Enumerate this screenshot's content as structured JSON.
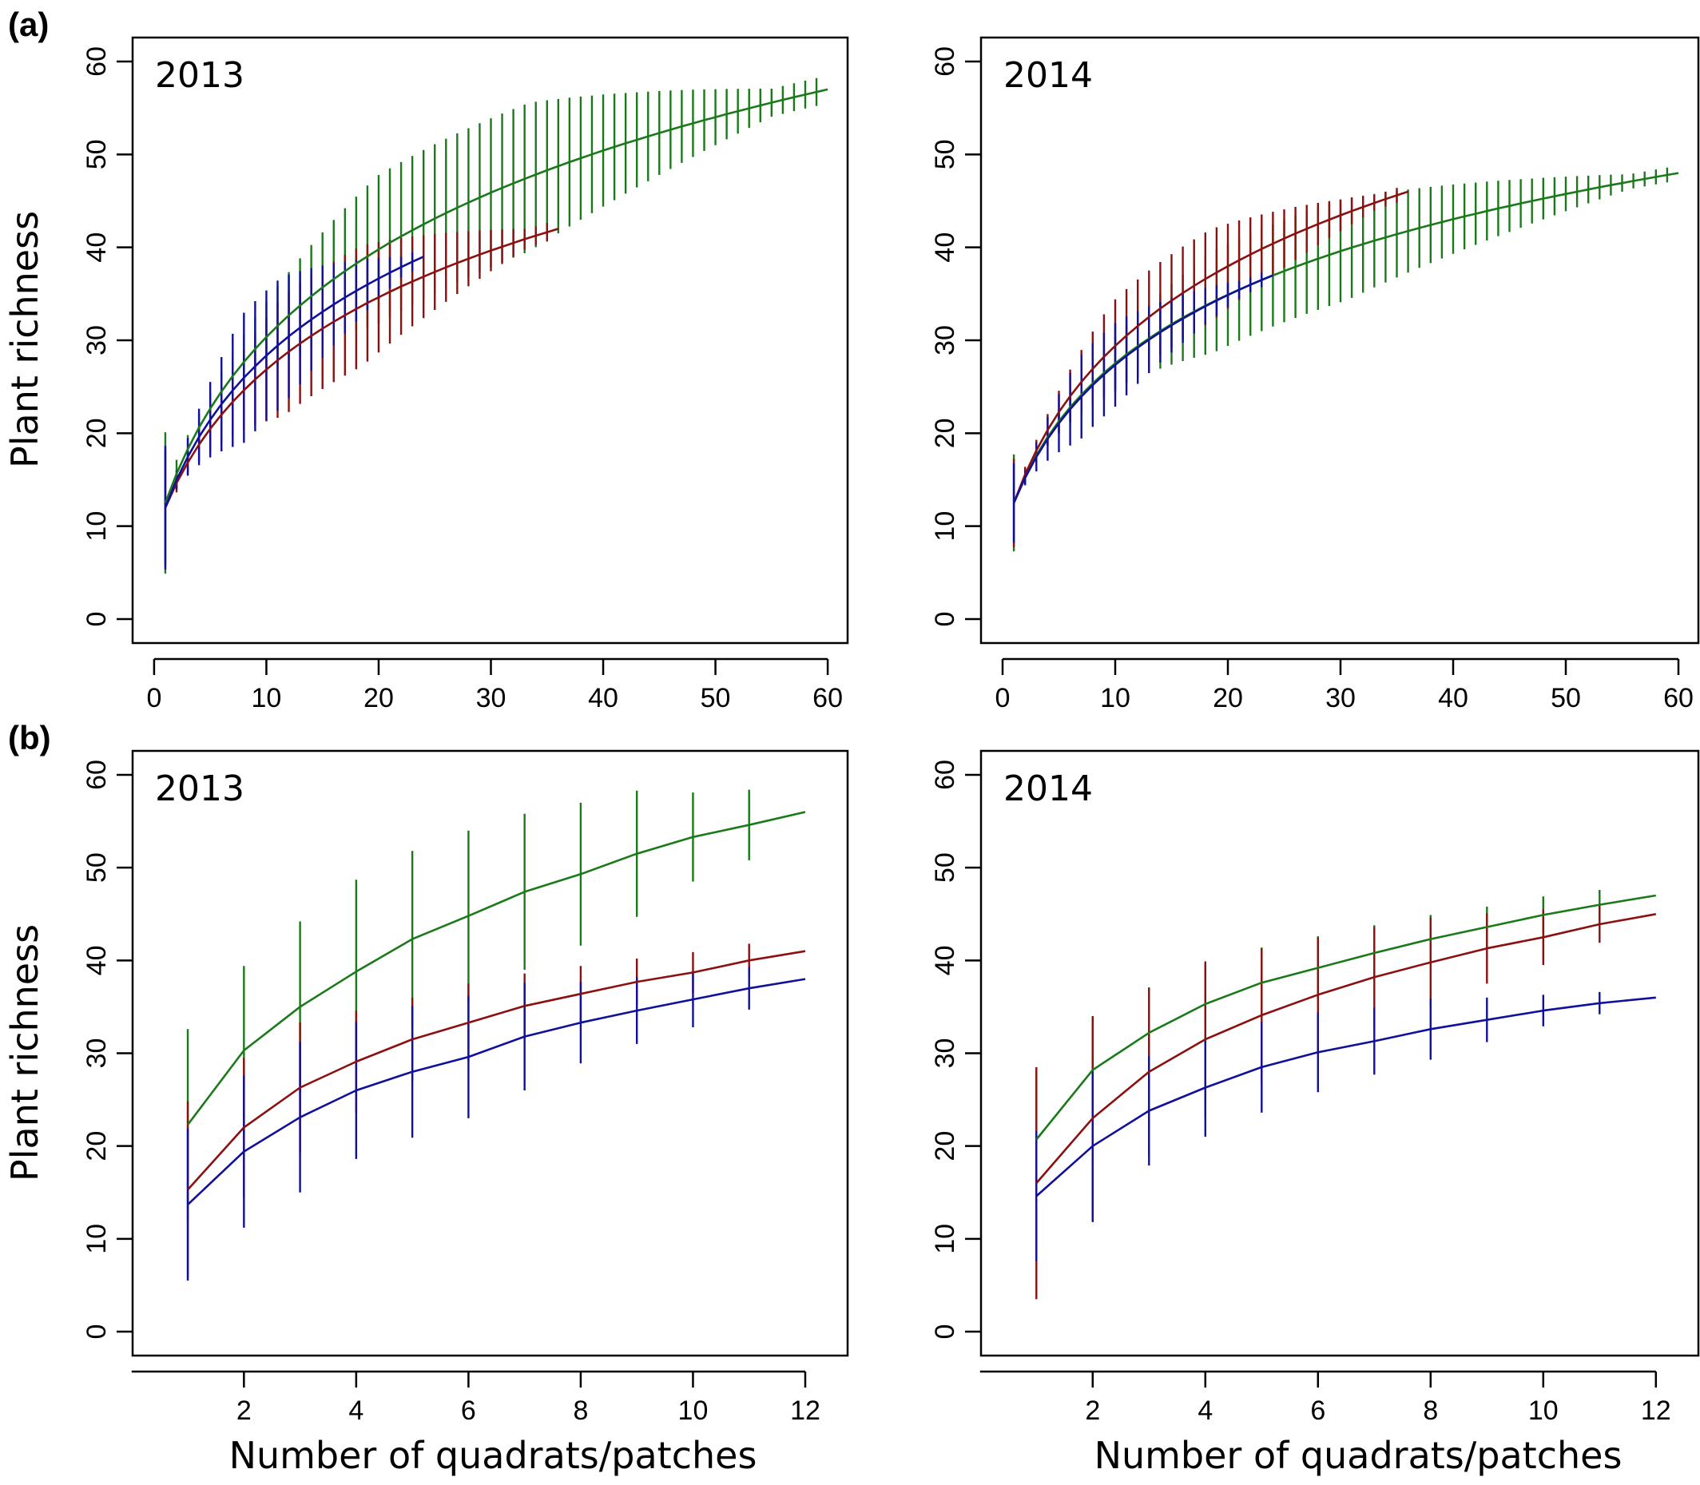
{
  "panel_labels": {
    "a": "(a)",
    "b": "(b)"
  },
  "ylabel": "Plant richness",
  "xlabel": "Number of quadrats/patches",
  "colors": {
    "green": "#1a7a1a",
    "red": "#8b1010",
    "blue": "#10109a"
  },
  "chart_data": [
    {
      "type": "line",
      "panel": "a",
      "year_label": "2013",
      "xlim": [
        0,
        60
      ],
      "ylim": [
        0,
        60
      ],
      "xticks": [
        0,
        10,
        20,
        30,
        40,
        50,
        60
      ],
      "yticks": [
        0,
        10,
        20,
        30,
        40,
        50,
        60
      ],
      "series": [
        {
          "color": "green",
          "n": 60,
          "final": 57,
          "a": 0.195,
          "x0": 0.2,
          "y0": 12.5,
          "err": {
            "max": 8,
            "ramp": 0.32,
            "peak": 0.55,
            "floor": 1.5
          }
        },
        {
          "color": "red",
          "n": 36,
          "final": 42,
          "a": 0.2,
          "x0": 0.25,
          "y0": 12.0,
          "err": {
            "max": 6.5,
            "ramp": 0.3,
            "peak": 0.5,
            "floor": 1.0
          }
        },
        {
          "color": "blue",
          "n": 24,
          "final": 39,
          "a": 0.22,
          "x0": 0.25,
          "y0": 12.0,
          "err": {
            "max": 7,
            "ramp": 0.3,
            "peak": 0.45,
            "floor": 1.0
          }
        }
      ]
    },
    {
      "type": "line",
      "panel": "a",
      "year_label": "2014",
      "xlim": [
        0,
        60
      ],
      "ylim": [
        0,
        60
      ],
      "xticks": [
        0,
        10,
        20,
        30,
        40,
        50,
        60
      ],
      "yticks": [
        0,
        10,
        20,
        30,
        40,
        50,
        60
      ],
      "series": [
        {
          "color": "green",
          "n": 60,
          "final": 48,
          "a": 0.24,
          "x0": 0.25,
          "y0": 12.5,
          "err": {
            "max": 5.5,
            "ramp": 0.3,
            "peak": 0.5,
            "floor": 0.8
          }
        },
        {
          "color": "red",
          "n": 36,
          "final": 46,
          "a": 0.22,
          "x0": 0.25,
          "y0": 12.5,
          "err": {
            "max": 5,
            "ramp": 0.25,
            "peak": 0.5,
            "floor": 0.8
          }
        },
        {
          "color": "blue",
          "n": 24,
          "final": 37,
          "a": 0.22,
          "x0": 0.25,
          "y0": 12.5,
          "err": {
            "max": 4.5,
            "ramp": 0.25,
            "peak": 0.4,
            "floor": 0.8
          }
        }
      ]
    },
    {
      "type": "line",
      "panel": "b",
      "year_label": "2013",
      "xlim": [
        0.4,
        12.4
      ],
      "ylim": [
        0,
        60
      ],
      "xticks": [
        2,
        4,
        6,
        8,
        10,
        12
      ],
      "yticks": [
        0,
        10,
        20,
        30,
        40,
        50,
        60
      ],
      "series": [
        {
          "color": "green",
          "x": [
            1,
            2,
            3,
            4,
            5,
            6,
            7,
            8,
            9,
            10,
            11,
            12
          ],
          "y": [
            22.3,
            30.3,
            35.0,
            38.8,
            42.3,
            44.8,
            47.4,
            49.3,
            51.5,
            53.3,
            54.6,
            56.0
          ],
          "err": [
            10.3,
            9.1,
            9.2,
            9.9,
            9.5,
            9.2,
            8.4,
            7.7,
            6.8,
            4.8,
            3.8,
            0
          ]
        },
        {
          "color": "red",
          "x": [
            1,
            2,
            3,
            4,
            5,
            6,
            7,
            8,
            9,
            10,
            11,
            12
          ],
          "y": [
            15.3,
            22.0,
            26.3,
            29.1,
            31.5,
            33.3,
            35.1,
            36.4,
            37.7,
            38.7,
            40.0,
            41.0
          ],
          "err": [
            9.5,
            7.5,
            7.0,
            5.5,
            4.5,
            4.2,
            3.5,
            3.0,
            2.5,
            2.2,
            1.8,
            0
          ]
        },
        {
          "color": "blue",
          "x": [
            1,
            2,
            3,
            4,
            5,
            6,
            7,
            8,
            9,
            10,
            11,
            12
          ],
          "y": [
            13.7,
            19.4,
            23.1,
            26.0,
            28.0,
            29.6,
            31.8,
            33.3,
            34.6,
            35.8,
            37.0,
            38.0
          ],
          "err": [
            8.2,
            8.2,
            8.1,
            7.4,
            7.1,
            6.6,
            5.8,
            4.4,
            3.6,
            3.0,
            2.3,
            0
          ]
        }
      ]
    },
    {
      "type": "line",
      "panel": "b",
      "year_label": "2014",
      "xlim": [
        0.4,
        12.4
      ],
      "ylim": [
        0,
        60
      ],
      "xticks": [
        2,
        4,
        6,
        8,
        10,
        12
      ],
      "yticks": [
        0,
        10,
        20,
        30,
        40,
        50,
        60
      ],
      "series": [
        {
          "color": "green",
          "x": [
            1,
            2,
            3,
            4,
            5,
            6,
            7,
            8,
            9,
            10,
            11,
            12
          ],
          "y": [
            20.7,
            28.2,
            32.2,
            35.3,
            37.6,
            39.2,
            40.8,
            42.3,
            43.6,
            44.9,
            46.0,
            47.0
          ],
          "err": [
            7.5,
            5.6,
            4.9,
            4.3,
            3.8,
            3.4,
            3.0,
            2.6,
            2.2,
            2.0,
            1.6,
            0
          ]
        },
        {
          "color": "red",
          "x": [
            1,
            2,
            3,
            4,
            5,
            6,
            7,
            8,
            9,
            10,
            11,
            12
          ],
          "y": [
            16.0,
            23.0,
            28.0,
            31.5,
            34.1,
            36.3,
            38.2,
            39.8,
            41.3,
            42.5,
            43.9,
            45.0
          ],
          "err": [
            12.5,
            11.0,
            9.0,
            8.4,
            7.2,
            6.2,
            5.4,
            4.8,
            3.8,
            3.0,
            2.0,
            0
          ]
        },
        {
          "color": "blue",
          "x": [
            1,
            2,
            3,
            4,
            5,
            6,
            7,
            8,
            9,
            10,
            11,
            12
          ],
          "y": [
            14.6,
            20.0,
            23.8,
            26.3,
            28.5,
            30.1,
            31.3,
            32.6,
            33.6,
            34.6,
            35.4,
            36.0
          ],
          "err": [
            7.0,
            8.2,
            5.9,
            5.3,
            4.9,
            4.3,
            3.6,
            3.3,
            2.4,
            1.7,
            1.2,
            0
          ]
        }
      ]
    }
  ]
}
